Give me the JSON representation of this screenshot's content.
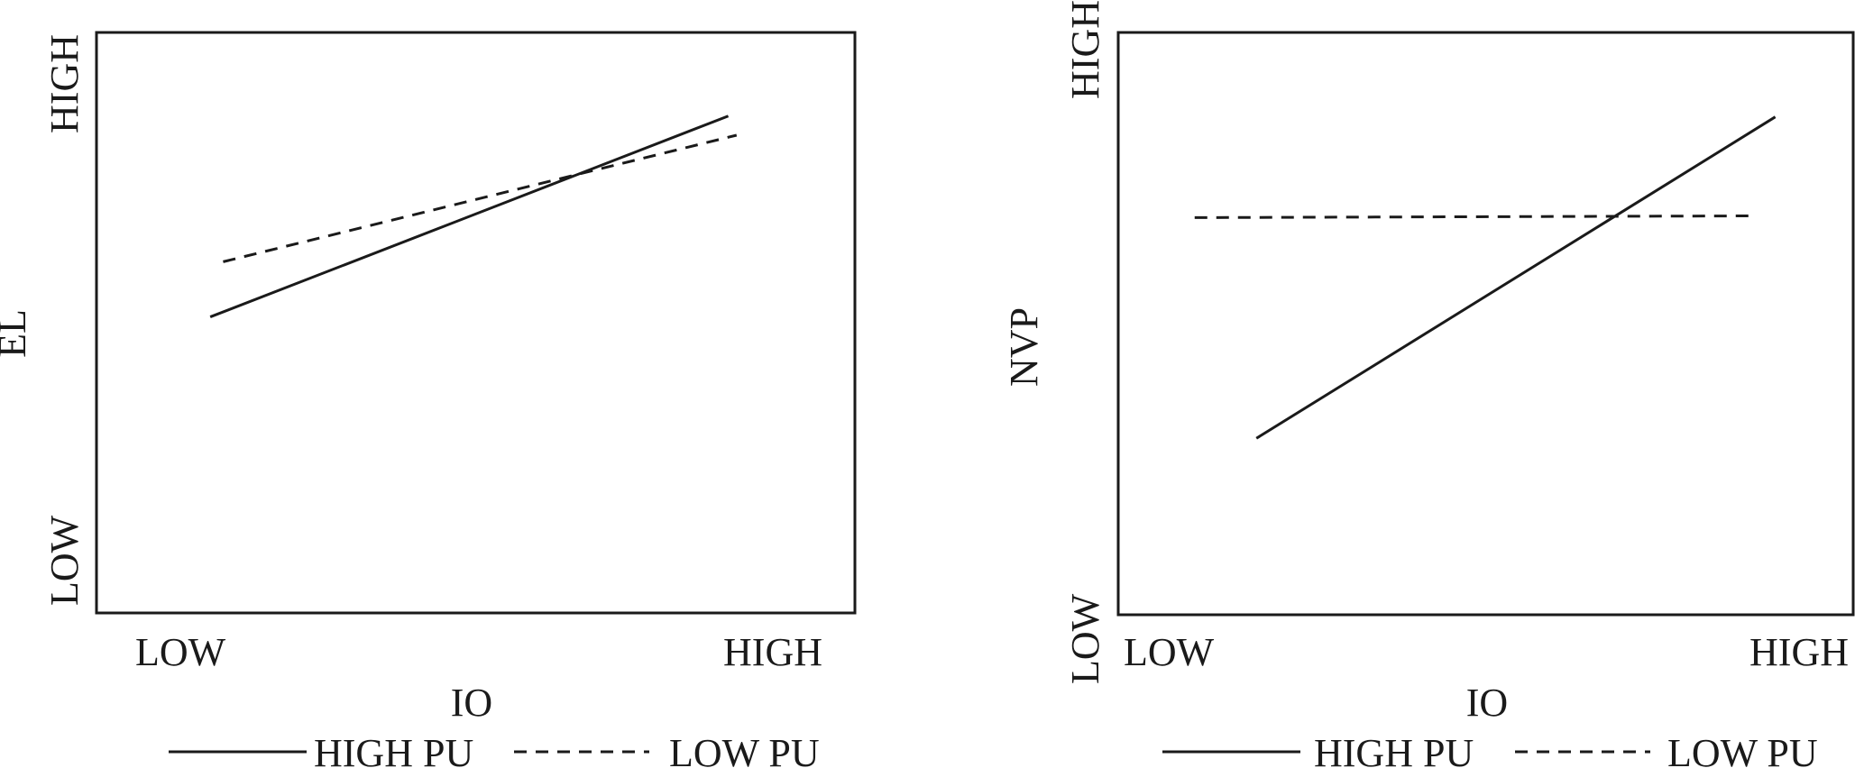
{
  "chart_data": [
    {
      "type": "line",
      "xlabel": "IO",
      "ylabel": "EL",
      "x_tick_labels": [
        "LOW",
        "HIGH"
      ],
      "y_tick_labels": [
        "LOW",
        "HIGH"
      ],
      "xlim": [
        0,
        1
      ],
      "ylim": [
        0,
        1
      ],
      "grid": false,
      "legend_position": "bottom",
      "series": [
        {
          "name": "HIGH PU",
          "style": "solid",
          "x": [
            0.15,
            0.833
          ],
          "y": [
            0.51,
            0.856
          ]
        },
        {
          "name": "LOW PU",
          "style": "dashed",
          "x": [
            0.167,
            0.844
          ],
          "y": [
            0.605,
            0.823
          ]
        }
      ]
    },
    {
      "type": "line",
      "xlabel": "IO",
      "ylabel": "NVP",
      "x_tick_labels": [
        "LOW",
        "HIGH"
      ],
      "y_tick_labels": [
        "LOW",
        "HIGH"
      ],
      "xlim": [
        0,
        1
      ],
      "ylim": [
        0,
        1
      ],
      "grid": false,
      "legend_position": "bottom",
      "series": [
        {
          "name": "HIGH PU",
          "style": "solid",
          "x": [
            0.188,
            0.894
          ],
          "y": [
            0.303,
            0.855
          ]
        },
        {
          "name": "LOW PU",
          "style": "dashed",
          "x": [
            0.104,
            0.866
          ],
          "y": [
            0.682,
            0.685
          ]
        }
      ]
    }
  ],
  "colors": {
    "ink": "#1a1a1a",
    "background": "#ffffff"
  }
}
